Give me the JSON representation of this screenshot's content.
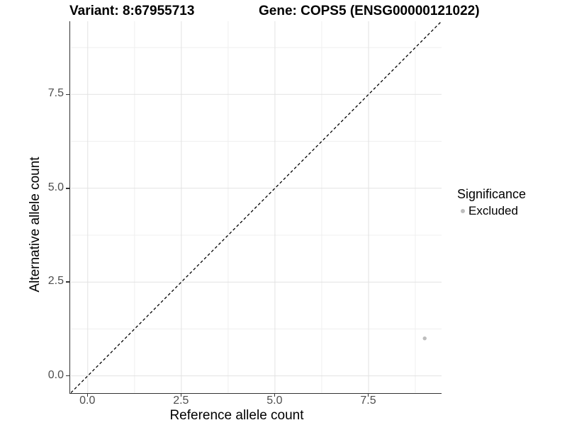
{
  "chart_data": {
    "type": "scatter",
    "title_left": "Variant: 8:67955713",
    "title_right": "Gene: COPS5 (ENSG00000121022)",
    "xlabel": "Reference allele count",
    "ylabel": "Alternative allele count",
    "xlim": [
      -0.45,
      9.45
    ],
    "ylim": [
      -0.45,
      9.45
    ],
    "x_ticks": [
      0.0,
      2.5,
      5.0,
      7.5
    ],
    "x_tick_labels": [
      "0.0",
      "2.5",
      "5.0",
      "7.5"
    ],
    "y_ticks": [
      0.0,
      2.5,
      5.0,
      7.5
    ],
    "y_tick_labels": [
      "0.0",
      "2.5",
      "5.0",
      "7.5"
    ],
    "x_minor_ticks": [
      1.25,
      3.75,
      6.25,
      8.75
    ],
    "y_minor_ticks": [
      1.25,
      3.75,
      6.25,
      8.75
    ],
    "grid": true,
    "points": [
      {
        "x": 9,
        "y": 1,
        "significance": "Excluded"
      }
    ],
    "identity_line": {
      "slope": 1,
      "intercept": 0,
      "linetype": "dashed"
    },
    "legend": {
      "title": "Significance",
      "position": "right",
      "items": [
        {
          "label": "Excluded",
          "color": "#bdbdbd",
          "marker": "circle"
        }
      ]
    }
  },
  "colors": {
    "background": "#ffffff",
    "grid_major": "#e2e2e2",
    "grid_minor": "#efefef",
    "axis_line": "#333333",
    "tick_mark": "#333333",
    "tick_label": "#4d4d4d",
    "text": "#000000",
    "point": "#bdbdbd",
    "dashed_line": "#000000"
  }
}
